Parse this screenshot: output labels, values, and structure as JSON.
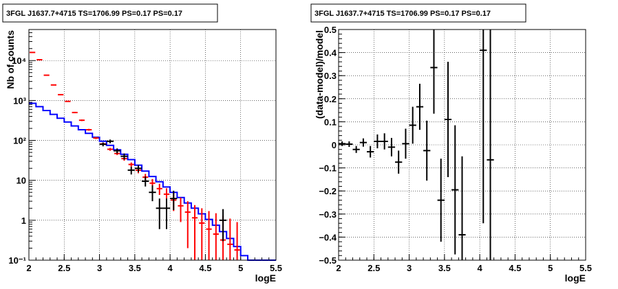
{
  "chart_data": [
    {
      "type": "step",
      "title": "3FGL J1637.7+4715 TS=1706.99 PS=0.17 PS=0.17",
      "xlabel": "logE",
      "ylabel": "Nb of counts",
      "xlim": [
        2,
        5.5
      ],
      "ylim": [
        0.1,
        60000
      ],
      "yscale": "log",
      "grid": true,
      "xticks": [
        "2",
        "2.5",
        "3",
        "3.5",
        "4",
        "4.5",
        "5",
        "5.5"
      ],
      "yticks": [
        {
          "value": 0.1,
          "label": "10⁻¹"
        },
        {
          "value": 1,
          "label": "1"
        },
        {
          "value": 10,
          "label": "10"
        },
        {
          "value": 100,
          "label": "10²"
        },
        {
          "value": 1000,
          "label": "10³"
        },
        {
          "value": 10000,
          "label": "10⁴"
        }
      ],
      "bin_edges": [
        2.0,
        2.1,
        2.2,
        2.3,
        2.4,
        2.5,
        2.6,
        2.7,
        2.8,
        2.9,
        3.0,
        3.1,
        3.2,
        3.3,
        3.4,
        3.5,
        3.6,
        3.7,
        3.8,
        3.9,
        4.0,
        4.1,
        4.2,
        4.3,
        4.4,
        4.5,
        4.6,
        4.7,
        4.8,
        4.9,
        5.0,
        5.1,
        5.2,
        5.3,
        5.4,
        5.5
      ],
      "series": [
        {
          "kind": "model-step",
          "color": "#0000ff",
          "values": [
            850,
            700,
            560,
            450,
            360,
            290,
            230,
            185,
            150,
            120,
            95,
            75,
            58,
            45,
            33,
            24,
            17,
            12.5,
            9.2,
            6.8,
            5.0,
            3.7,
            2.7,
            2.0,
            1.45,
            1.05,
            0.75,
            0.52,
            0.35,
            0.22,
            0.13,
            0.1,
            0.1,
            0.1,
            0.1
          ]
        },
        {
          "kind": "model-with-errors",
          "color": "#ff0000",
          "x": [
            2.05,
            2.15,
            2.25,
            2.35,
            2.45,
            2.55,
            2.65,
            2.75,
            2.85,
            2.95,
            3.05,
            3.15,
            3.25,
            3.35,
            3.45,
            3.55,
            3.65,
            3.75,
            3.85,
            3.95,
            4.05,
            4.15,
            4.25,
            4.35,
            4.45,
            4.55,
            4.65,
            4.75,
            4.85,
            4.95
          ],
          "values": [
            16000,
            10500,
            4300,
            2450,
            1400,
            950,
            500,
            320,
            185,
            115,
            82,
            60,
            47,
            35,
            25,
            18,
            12,
            8.5,
            6.2,
            4.5,
            3.2,
            2.3,
            1.6,
            1.15,
            0.85,
            0.6,
            0.45,
            0.32,
            0.25,
            0.18
          ],
          "err_low": [
            15700,
            10300,
            4200,
            2400,
            1360,
            920,
            480,
            305,
            175,
            108,
            76,
            55,
            43,
            31,
            22,
            15,
            9.5,
            6.3,
            4.3,
            2.8,
            1.7,
            0.9,
            0.2,
            0.1,
            0.1,
            0.1,
            0.1,
            0.1,
            0.1,
            0.1
          ],
          "err_high": [
            16300,
            10700,
            4400,
            2500,
            1440,
            980,
            520,
            335,
            195,
            122,
            88,
            65,
            51,
            39,
            28,
            21,
            14.5,
            10.8,
            8.2,
            6.3,
            4.8,
            3.7,
            3.0,
            2.4,
            2.0,
            1.7,
            1.5,
            1.3,
            1.1,
            0.9
          ]
        },
        {
          "kind": "data",
          "color": "#000000",
          "x": [
            3.05,
            3.15,
            3.25,
            3.35,
            3.45,
            3.55,
            3.65,
            3.75,
            3.85,
            3.95,
            4.05,
            4.75
          ],
          "values": [
            80,
            95,
            55,
            40,
            18,
            20,
            9.5,
            5,
            2,
            2,
            3.5,
            1
          ],
          "err_low": [
            71,
            85,
            47,
            33,
            14,
            16,
            7,
            3,
            0.6,
            0.6,
            1.8,
            0.3
          ],
          "err_high": [
            89,
            105,
            63,
            47,
            22,
            24,
            12.5,
            7.5,
            3.5,
            3.5,
            5.5,
            1.9
          ]
        }
      ]
    },
    {
      "type": "scatter",
      "title": "3FGL J1637.7+4715 TS=1706.99 PS=0.17 PS=0.17",
      "xlabel": "logE",
      "ylabel": "(data-model)/model",
      "xlim": [
        2,
        5.5
      ],
      "ylim": [
        -0.5,
        0.5
      ],
      "grid": true,
      "xticks": [
        "2",
        "2.5",
        "3",
        "3.5",
        "4",
        "4.5",
        "5",
        "5.5"
      ],
      "yticks": [
        "−0.5",
        "−0.4",
        "−0.3",
        "−0.2",
        "−0.1",
        "0",
        "0.1",
        "0.2",
        "0.3",
        "0.4",
        "0.5"
      ],
      "series": [
        {
          "color": "#000000",
          "x": [
            2.05,
            2.15,
            2.25,
            2.35,
            2.45,
            2.55,
            2.65,
            2.75,
            2.85,
            2.95,
            3.05,
            3.15,
            3.25,
            3.35,
            3.45,
            3.55,
            3.65,
            3.75,
            4.05,
            4.15
          ],
          "y": [
            0.005,
            0.003,
            -0.02,
            0.01,
            -0.03,
            0.015,
            0.015,
            -0.01,
            -0.075,
            0.005,
            0.085,
            0.165,
            -0.025,
            0.335,
            -0.24,
            0.11,
            -0.195,
            -0.39,
            0.41,
            -0.065
          ],
          "err": [
            0.01,
            0.012,
            0.015,
            0.018,
            0.025,
            0.03,
            0.035,
            0.04,
            0.05,
            0.065,
            0.08,
            0.1,
            0.13,
            0.2,
            0.18,
            0.25,
            0.28,
            0.34,
            0.75,
            0.9
          ]
        }
      ]
    }
  ]
}
